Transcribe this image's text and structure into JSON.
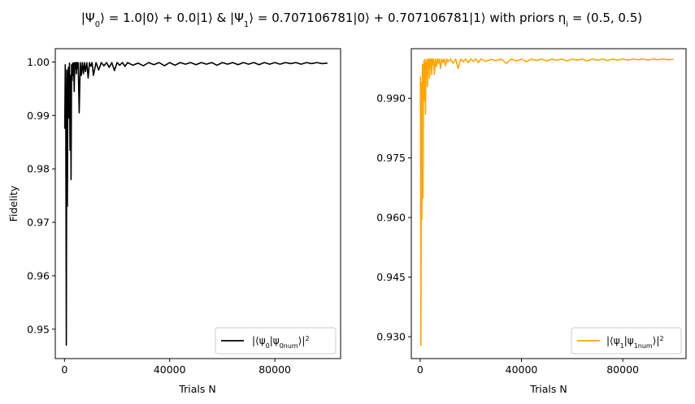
{
  "figure": {
    "title_parts": [
      "|Ψ",
      "0",
      "⟩ = 1.0|0⟩ + 0.0|1⟩ & |Ψ",
      "1",
      "⟩ = 0.707106781|0⟩ + 0.707106781|1⟩ with priors η",
      "i",
      " = (0.5, 0.5)"
    ]
  },
  "chart_data": [
    {
      "type": "line",
      "xlabel": "Trials N",
      "ylabel": "Fidelity",
      "xlim": [
        -3500,
        105000
      ],
      "ylim": [
        0.9445,
        1.0025
      ],
      "x_ticks": [
        0,
        40000,
        80000
      ],
      "x_tick_labels": [
        "0",
        "40000",
        "80000"
      ],
      "y_ticks": [
        0.95,
        0.96,
        0.97,
        0.98,
        0.99,
        1.0
      ],
      "y_tick_labels": [
        "0.95",
        "0.96",
        "0.97",
        "0.98",
        "0.99",
        "1.00"
      ],
      "legend_position": "lower right",
      "series": [
        {
          "name_parts": [
            "|⟨ψ",
            "0",
            "|ψ",
            "0num",
            "⟩|",
            "2"
          ],
          "color": "#000000",
          "x": [
            100,
            300,
            500,
            700,
            900,
            1100,
            1300,
            1500,
            1700,
            1900,
            2100,
            2300,
            2500,
            2700,
            2900,
            3100,
            3300,
            3500,
            3700,
            3900,
            4100,
            4300,
            4500,
            4700,
            4900,
            5200,
            5600,
            6000,
            6400,
            6800,
            7200,
            7600,
            8000,
            8500,
            9000,
            9500,
            10000,
            10500,
            11000,
            12000,
            13000,
            14000,
            15000,
            16000,
            17000,
            18000,
            19000,
            20000,
            21000,
            22000,
            23000,
            24000,
            26000,
            28000,
            30000,
            32000,
            34000,
            36000,
            38000,
            40000,
            42000,
            44000,
            46000,
            48000,
            50000,
            52000,
            54000,
            56000,
            58000,
            60000,
            62000,
            64000,
            66000,
            68000,
            70000,
            72000,
            74000,
            76000,
            78000,
            80000,
            82000,
            84000,
            86000,
            88000,
            90000,
            92000,
            94000,
            96000,
            98000,
            100000
          ],
          "values": [
            0.9875,
            0.9995,
            0.9895,
            0.947,
            0.9985,
            0.973,
            0.9965,
            0.999,
            0.9895,
            0.9998,
            0.9835,
            0.9975,
            0.978,
            0.9995,
            0.9965,
            0.9998,
            0.9975,
            0.9998,
            0.9945,
            0.9999,
            0.9988,
            0.9999,
            0.9978,
            0.9999,
            0.9988,
            0.9999,
            0.9905,
            0.9999,
            0.9975,
            0.9999,
            0.9978,
            0.9999,
            0.9982,
            0.9999,
            0.997,
            0.9999,
            0.9992,
            0.9999,
            0.9975,
            0.9999,
            0.9985,
            0.9999,
            0.9993,
            0.9999,
            0.999,
            0.9999,
            0.9984,
            0.9999,
            0.9994,
            0.9999,
            0.9992,
            0.9999,
            0.9994,
            0.9998,
            0.9993,
            0.9999,
            0.9995,
            0.9999,
            0.9993,
            0.9999,
            0.9994,
            0.9999,
            0.9996,
            0.9999,
            0.9995,
            0.9999,
            0.9996,
            0.9999,
            0.9994,
            0.9999,
            0.9996,
            0.9999,
            0.9995,
            0.9999,
            0.9996,
            0.9999,
            0.9995,
            0.9999,
            0.9996,
            0.9999,
            0.9996,
            0.9999,
            0.9997,
            0.9999,
            0.9996,
            0.9999,
            0.9997,
            0.9999,
            0.9997,
            0.9998
          ]
        }
      ]
    },
    {
      "type": "line",
      "xlabel": "Trials N",
      "ylabel": "",
      "xlim": [
        -3500,
        105000
      ],
      "ylim": [
        0.9245,
        1.0025
      ],
      "x_ticks": [
        0,
        40000,
        80000
      ],
      "x_tick_labels": [
        "0",
        "40000",
        "80000"
      ],
      "y_ticks": [
        0.93,
        0.945,
        0.96,
        0.975,
        0.99
      ],
      "y_tick_labels": [
        "0.930",
        "0.945",
        "0.960",
        "0.975",
        "0.990"
      ],
      "legend_position": "lower right",
      "series": [
        {
          "name_parts": [
            "|⟨ψ",
            "1",
            "|ψ",
            "1num",
            "⟩|",
            "2"
          ],
          "color": "#ffa500",
          "x": [
            100,
            300,
            500,
            700,
            900,
            1100,
            1300,
            1500,
            1700,
            1900,
            2100,
            2300,
            2500,
            2700,
            2900,
            3100,
            3300,
            3500,
            3700,
            3900,
            4100,
            4300,
            4500,
            4700,
            4900,
            5200,
            5600,
            6000,
            6400,
            6800,
            7200,
            7600,
            8000,
            8500,
            9000,
            9500,
            10000,
            10500,
            11000,
            12000,
            13000,
            14000,
            15000,
            16000,
            17000,
            18000,
            19000,
            20000,
            21000,
            22000,
            23000,
            24000,
            26000,
            28000,
            30000,
            32000,
            34000,
            36000,
            38000,
            40000,
            42000,
            44000,
            46000,
            48000,
            50000,
            52000,
            54000,
            56000,
            58000,
            60000,
            62000,
            64000,
            66000,
            68000,
            70000,
            72000,
            74000,
            76000,
            78000,
            80000,
            82000,
            84000,
            86000,
            88000,
            90000,
            92000,
            94000,
            96000,
            98000,
            100000
          ],
          "values": [
            0.9955,
            0.9278,
            0.994,
            0.9595,
            0.9985,
            0.965,
            0.997,
            0.9995,
            0.9895,
            0.9998,
            0.986,
            0.999,
            0.997,
            0.9998,
            0.993,
            0.9998,
            0.9975,
            0.9998,
            0.995,
            0.9999,
            0.998,
            0.9999,
            0.996,
            0.9999,
            0.9985,
            0.9999,
            0.996,
            0.9999,
            0.998,
            0.9999,
            0.9988,
            0.9999,
            0.9975,
            0.9999,
            0.999,
            0.9999,
            0.9982,
            0.9999,
            0.9992,
            0.9999,
            0.9988,
            0.9999,
            0.9975,
            0.9999,
            0.9992,
            0.9999,
            0.999,
            0.9999,
            0.9993,
            0.9999,
            0.999,
            0.9999,
            0.9993,
            0.9998,
            0.9995,
            0.9999,
            0.9988,
            0.9999,
            0.9994,
            0.9999,
            0.9992,
            0.9999,
            0.9995,
            0.9999,
            0.9994,
            0.9999,
            0.9996,
            0.9999,
            0.9994,
            0.9999,
            0.9996,
            0.9999,
            0.9994,
            0.9999,
            0.9996,
            0.9999,
            0.9995,
            0.9999,
            0.9996,
            0.9999,
            0.9996,
            0.9999,
            0.9997,
            0.9999,
            0.9996,
            0.9999,
            0.9997,
            0.9999,
            0.9997,
            0.9998
          ]
        }
      ]
    }
  ]
}
